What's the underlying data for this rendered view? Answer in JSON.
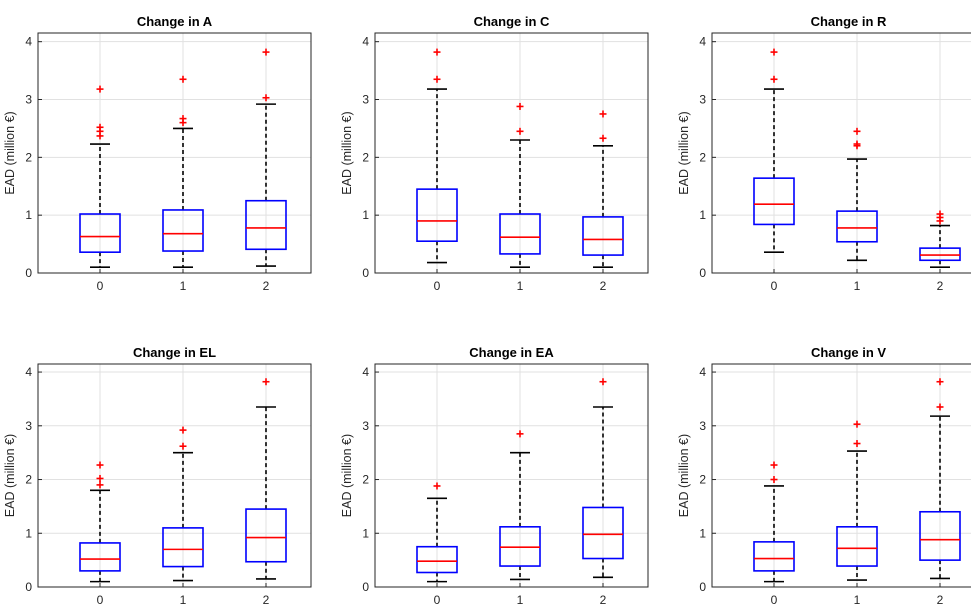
{
  "chart_data": [
    {
      "type": "box",
      "title": "Change in A",
      "ylabel": "EAD (million €)",
      "xlabel": "",
      "ylim": [
        0,
        4.15
      ],
      "yticks": [
        0,
        1,
        2,
        3,
        4
      ],
      "categories": [
        "0",
        "1",
        "2"
      ],
      "boxes": [
        {
          "whisker_low": 0.1,
          "q1": 0.36,
          "median": 0.63,
          "q3": 1.02,
          "whisker_high": 2.23,
          "outliers": [
            2.37,
            2.45,
            2.52,
            3.18
          ]
        },
        {
          "whisker_low": 0.1,
          "q1": 0.38,
          "median": 0.68,
          "q3": 1.09,
          "whisker_high": 2.5,
          "outliers": [
            2.6,
            2.67,
            3.35
          ]
        },
        {
          "whisker_low": 0.12,
          "q1": 0.41,
          "median": 0.78,
          "q3": 1.25,
          "whisker_high": 2.92,
          "outliers": [
            3.03,
            3.82
          ]
        }
      ],
      "grid": true
    },
    {
      "type": "box",
      "title": "Change in C",
      "ylabel": "EAD (million €)",
      "xlabel": "",
      "ylim": [
        0,
        4.15
      ],
      "yticks": [
        0,
        1,
        2,
        3,
        4
      ],
      "categories": [
        "0",
        "1",
        "2"
      ],
      "boxes": [
        {
          "whisker_low": 0.18,
          "q1": 0.55,
          "median": 0.9,
          "q3": 1.45,
          "whisker_high": 3.18,
          "outliers": [
            3.35,
            3.82
          ]
        },
        {
          "whisker_low": 0.1,
          "q1": 0.33,
          "median": 0.62,
          "q3": 1.02,
          "whisker_high": 2.3,
          "outliers": [
            2.45,
            2.88
          ]
        },
        {
          "whisker_low": 0.1,
          "q1": 0.31,
          "median": 0.58,
          "q3": 0.97,
          "whisker_high": 2.2,
          "outliers": [
            2.33,
            2.75
          ]
        }
      ],
      "grid": true
    },
    {
      "type": "box",
      "title": "Change in R",
      "ylabel": "EAD (million €)",
      "xlabel": "",
      "ylim": [
        0,
        4.15
      ],
      "yticks": [
        0,
        1,
        2,
        3,
        4
      ],
      "categories": [
        "0",
        "1",
        "2"
      ],
      "boxes": [
        {
          "whisker_low": 0.36,
          "q1": 0.84,
          "median": 1.19,
          "q3": 1.64,
          "whisker_high": 3.18,
          "outliers": [
            3.35,
            3.82
          ]
        },
        {
          "whisker_low": 0.22,
          "q1": 0.54,
          "median": 0.78,
          "q3": 1.07,
          "whisker_high": 1.97,
          "outliers": [
            2.2,
            2.23,
            2.45
          ]
        },
        {
          "whisker_low": 0.1,
          "q1": 0.22,
          "median": 0.31,
          "q3": 0.43,
          "whisker_high": 0.82,
          "outliers": [
            0.9,
            0.96,
            1.02
          ]
        }
      ],
      "grid": true
    },
    {
      "type": "box",
      "title": "Change in EL",
      "ylabel": "EAD (million €)",
      "xlabel": "",
      "ylim": [
        0,
        4.15
      ],
      "yticks": [
        0,
        1,
        2,
        3,
        4
      ],
      "categories": [
        "0",
        "1",
        "2"
      ],
      "boxes": [
        {
          "whisker_low": 0.1,
          "q1": 0.3,
          "median": 0.52,
          "q3": 0.82,
          "whisker_high": 1.8,
          "outliers": [
            1.9,
            2.02,
            2.27
          ]
        },
        {
          "whisker_low": 0.12,
          "q1": 0.38,
          "median": 0.7,
          "q3": 1.1,
          "whisker_high": 2.5,
          "outliers": [
            2.62,
            2.92
          ]
        },
        {
          "whisker_low": 0.15,
          "q1": 0.47,
          "median": 0.92,
          "q3": 1.45,
          "whisker_high": 3.35,
          "outliers": [
            3.82
          ]
        }
      ],
      "grid": true
    },
    {
      "type": "box",
      "title": "Change in EA",
      "ylabel": "EAD (million €)",
      "xlabel": "",
      "ylim": [
        0,
        4.15
      ],
      "yticks": [
        0,
        1,
        2,
        3,
        4
      ],
      "categories": [
        "0",
        "1",
        "2"
      ],
      "boxes": [
        {
          "whisker_low": 0.1,
          "q1": 0.27,
          "median": 0.48,
          "q3": 0.75,
          "whisker_high": 1.65,
          "outliers": [
            1.88
          ]
        },
        {
          "whisker_low": 0.14,
          "q1": 0.39,
          "median": 0.74,
          "q3": 1.12,
          "whisker_high": 2.5,
          "outliers": [
            2.85
          ]
        },
        {
          "whisker_low": 0.18,
          "q1": 0.53,
          "median": 0.98,
          "q3": 1.48,
          "whisker_high": 3.35,
          "outliers": [
            3.82
          ]
        }
      ],
      "grid": true
    },
    {
      "type": "box",
      "title": "Change in V",
      "ylabel": "EAD (million €)",
      "xlabel": "",
      "ylim": [
        0,
        4.15
      ],
      "yticks": [
        0,
        1,
        2,
        3,
        4
      ],
      "categories": [
        "0",
        "1",
        "2"
      ],
      "boxes": [
        {
          "whisker_low": 0.1,
          "q1": 0.3,
          "median": 0.53,
          "q3": 0.84,
          "whisker_high": 1.88,
          "outliers": [
            2.0,
            2.27
          ]
        },
        {
          "whisker_low": 0.13,
          "q1": 0.39,
          "median": 0.72,
          "q3": 1.12,
          "whisker_high": 2.53,
          "outliers": [
            2.67,
            3.03
          ]
        },
        {
          "whisker_low": 0.16,
          "q1": 0.5,
          "median": 0.88,
          "q3": 1.4,
          "whisker_high": 3.18,
          "outliers": [
            3.35,
            3.82
          ]
        }
      ],
      "grid": true
    }
  ],
  "colors": {
    "box": "#0000ff",
    "median": "#ff0000",
    "outlier": "#ff0000",
    "whisker": "#000000",
    "grid": "#e1e1e1",
    "axis": "#262626",
    "text": "#262626"
  }
}
